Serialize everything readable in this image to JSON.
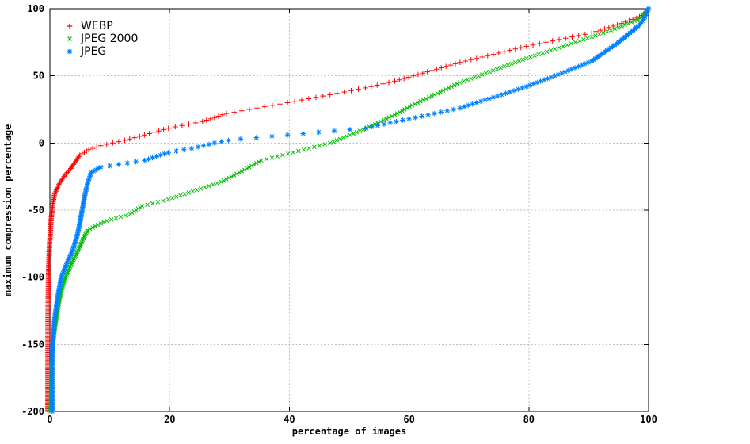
{
  "chart_data": {
    "type": "scatter",
    "title": "",
    "xlabel": "percentage of images",
    "ylabel": "maximum compression percentage",
    "xlim": [
      0,
      100
    ],
    "ylim": [
      -200,
      100
    ],
    "xticks": [
      0,
      20,
      40,
      60,
      80,
      100
    ],
    "yticks": [
      100,
      50,
      0,
      -50,
      -100,
      -150,
      -200
    ],
    "grid": true,
    "grid_color": "#bfbfbf",
    "axis_color": "#000000",
    "background_color": "#ffffff",
    "legend_position": "top-left-inside",
    "sampling": {
      "note": "curves sampled at uniform y steps",
      "y_min": -200,
      "y_max": 100,
      "y_step": 1
    },
    "series": [
      {
        "name": "WEBP",
        "color": "#ff0000",
        "marker": "plus",
        "points_value_to_pct": [
          [
            -200,
            -0.35
          ],
          [
            -150,
            -0.35
          ],
          [
            -120,
            -0.3
          ],
          [
            -100,
            -0.25
          ],
          [
            -85,
            -0.15
          ],
          [
            -75,
            -0.05
          ],
          [
            -65,
            0.1
          ],
          [
            -55,
            0.25
          ],
          [
            -45,
            0.5
          ],
          [
            -38,
            0.8
          ],
          [
            -30,
            1.6
          ],
          [
            -24,
            2.5
          ],
          [
            -19,
            3.5
          ],
          [
            -13,
            4.4
          ],
          [
            -9,
            5.0
          ],
          [
            -5,
            6.5
          ],
          [
            -2,
            8.5
          ],
          [
            0,
            10.5
          ],
          [
            2,
            12.5
          ],
          [
            5.5,
            15.4
          ],
          [
            11,
            19.8
          ],
          [
            16,
            25.5
          ],
          [
            22,
            29.5
          ],
          [
            30,
            39.7
          ],
          [
            41,
            52.7
          ],
          [
            46,
            57.6
          ],
          [
            60,
            68.5
          ],
          [
            72,
            79.6
          ],
          [
            82,
            90.5
          ],
          [
            89,
            95.5
          ],
          [
            93.5,
            98.3
          ],
          [
            96,
            99.2
          ],
          [
            100,
            100
          ]
        ]
      },
      {
        "name": "JPEG 2000",
        "color": "#00c000",
        "marker": "cross",
        "points_value_to_pct": [
          [
            -200,
            0.1
          ],
          [
            -170,
            0.25
          ],
          [
            -150,
            0.5
          ],
          [
            -130,
            1.1
          ],
          [
            -112,
            1.8
          ],
          [
            -100,
            2.6
          ],
          [
            -90,
            3.6
          ],
          [
            -80,
            4.7
          ],
          [
            -72,
            5.5
          ],
          [
            -65,
            6.3
          ],
          [
            -61,
            8.0
          ],
          [
            -58,
            9.5
          ],
          [
            -53,
            13.4
          ],
          [
            -47,
            15.4
          ],
          [
            -42,
            19.8
          ],
          [
            -29,
            28.6
          ],
          [
            -20,
            32.5
          ],
          [
            -13,
            35.3
          ],
          [
            -10,
            38.0
          ],
          [
            0,
            46.8
          ],
          [
            11,
            52.9
          ],
          [
            21,
            57.6
          ],
          [
            28,
            60.5
          ],
          [
            45,
            68.5
          ],
          [
            63,
            79.6
          ],
          [
            79,
            90.5
          ],
          [
            86,
            95.0
          ],
          [
            92,
            98.2
          ],
          [
            95,
            99.2
          ],
          [
            100,
            100
          ]
        ]
      },
      {
        "name": "JPEG",
        "color": "#0080ff",
        "marker": "star",
        "points_value_to_pct": [
          [
            -200,
            0.4
          ],
          [
            -170,
            0.4
          ],
          [
            -150,
            0.45
          ],
          [
            -130,
            0.8
          ],
          [
            -112,
            1.4
          ],
          [
            -100,
            1.9
          ],
          [
            -90,
            2.8
          ],
          [
            -80,
            3.8
          ],
          [
            -70,
            4.5
          ],
          [
            -60,
            5.0
          ],
          [
            -50,
            5.4
          ],
          [
            -40,
            5.8
          ],
          [
            -30,
            6.3
          ],
          [
            -22,
            6.9
          ],
          [
            -18,
            8.5
          ],
          [
            -16,
            11.5
          ],
          [
            -13,
            15.8
          ],
          [
            -7,
            19.8
          ],
          [
            -3.6,
            24.2
          ],
          [
            0,
            27.5
          ],
          [
            2.4,
            30.3
          ],
          [
            6,
            39.7
          ],
          [
            11,
            52.7
          ],
          [
            16.6,
            58.5
          ],
          [
            26,
            68.5
          ],
          [
            42,
            79.6
          ],
          [
            52,
            85.5
          ],
          [
            61,
            90.5
          ],
          [
            75,
            95.0
          ],
          [
            87.6,
            98.4
          ],
          [
            93,
            99.3
          ],
          [
            100,
            100
          ]
        ]
      }
    ]
  },
  "legend": {
    "items": [
      {
        "label": "WEBP"
      },
      {
        "label": "JPEG 2000"
      },
      {
        "label": "JPEG"
      }
    ]
  }
}
